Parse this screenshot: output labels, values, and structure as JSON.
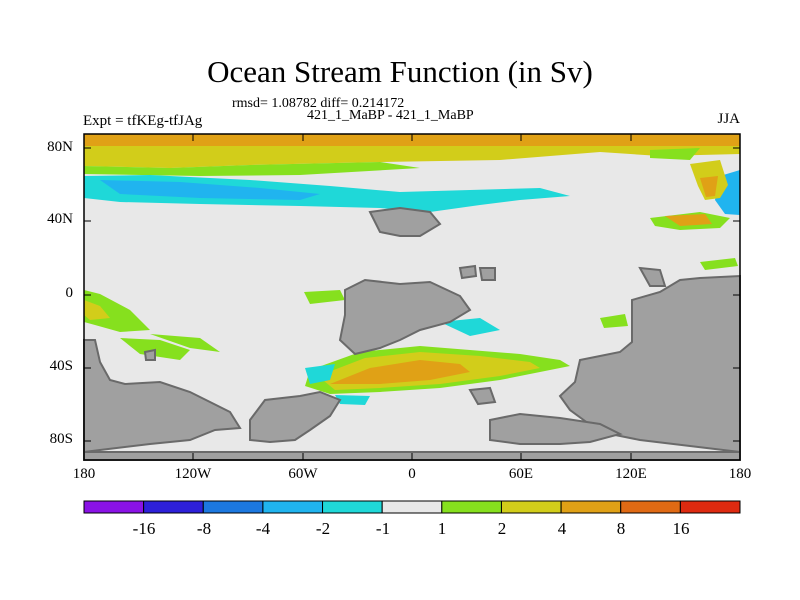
{
  "title": "Ocean Stream Function (in Sv)",
  "subtitle_stats": "rmsd= 1.08782 diff= 0.214172",
  "subtitle_cases": "421_1_MaBP - 421_1_MaBP",
  "left_label": "Expt = tfKEg-tfJAg",
  "right_label": "JJA",
  "lat_ticks": [
    "80N",
    "40N",
    "0",
    "40S",
    "80S"
  ],
  "lon_ticks": [
    "180",
    "120W",
    "60W",
    "0",
    "60E",
    "120E",
    "180"
  ],
  "colorbar": {
    "labels": [
      "-16",
      "-8",
      "-4",
      "-2",
      "-1",
      "1",
      "2",
      "4",
      "8",
      "16"
    ],
    "colors": [
      "#8a12e6",
      "#2d20d9",
      "#1c78e0",
      "#20b4ef",
      "#1fd8d8",
      "#e8e8e8",
      "#86e01e",
      "#d2cd1a",
      "#e0a116",
      "#e06a14",
      "#de2a10"
    ]
  },
  "map_colors": {
    "land": "#a0a0a0",
    "land_outline": "#6a6a6a",
    "background_field": "#e8e8e8"
  }
}
